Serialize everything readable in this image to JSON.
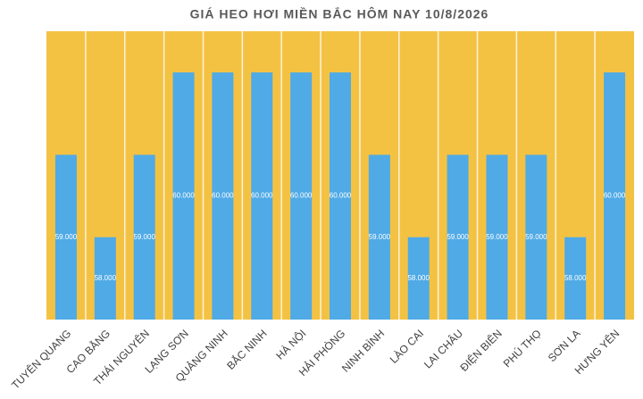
{
  "chart_data": {
    "type": "bar",
    "title": "GIÁ HEO HƠI MIỀN BẮC HÔM NAY 10/8/2026",
    "categories": [
      "TUYÊN QUANG",
      "CAO BẰNG",
      "THÁI NGUYÊN",
      "LẠNG SƠN",
      "QUẢNG NINH",
      "BẮC NINH",
      "HÀ NỘI",
      "HẢI PHÒNG",
      "NINH BÌNH",
      "LÀO CAI",
      "LAI CHÂU",
      "ĐIỆN BIÊN",
      "PHÚ THỌ",
      "SƠN LA",
      "HƯNG YÊN"
    ],
    "values": [
      59000,
      58000,
      59000,
      60000,
      60000,
      60000,
      60000,
      60000,
      59000,
      58000,
      59000,
      59000,
      59000,
      58000,
      60000
    ],
    "value_labels": [
      "59.000",
      "58.000",
      "59.000",
      "60.000",
      "60.000",
      "60.000",
      "60.000",
      "60.000",
      "59.000",
      "58.000",
      "59.000",
      "59.000",
      "59.000",
      "58.000",
      "60.000"
    ],
    "color": "#4faae6",
    "background": "#f4c243",
    "ylim": [
      57000,
      60500
    ]
  }
}
